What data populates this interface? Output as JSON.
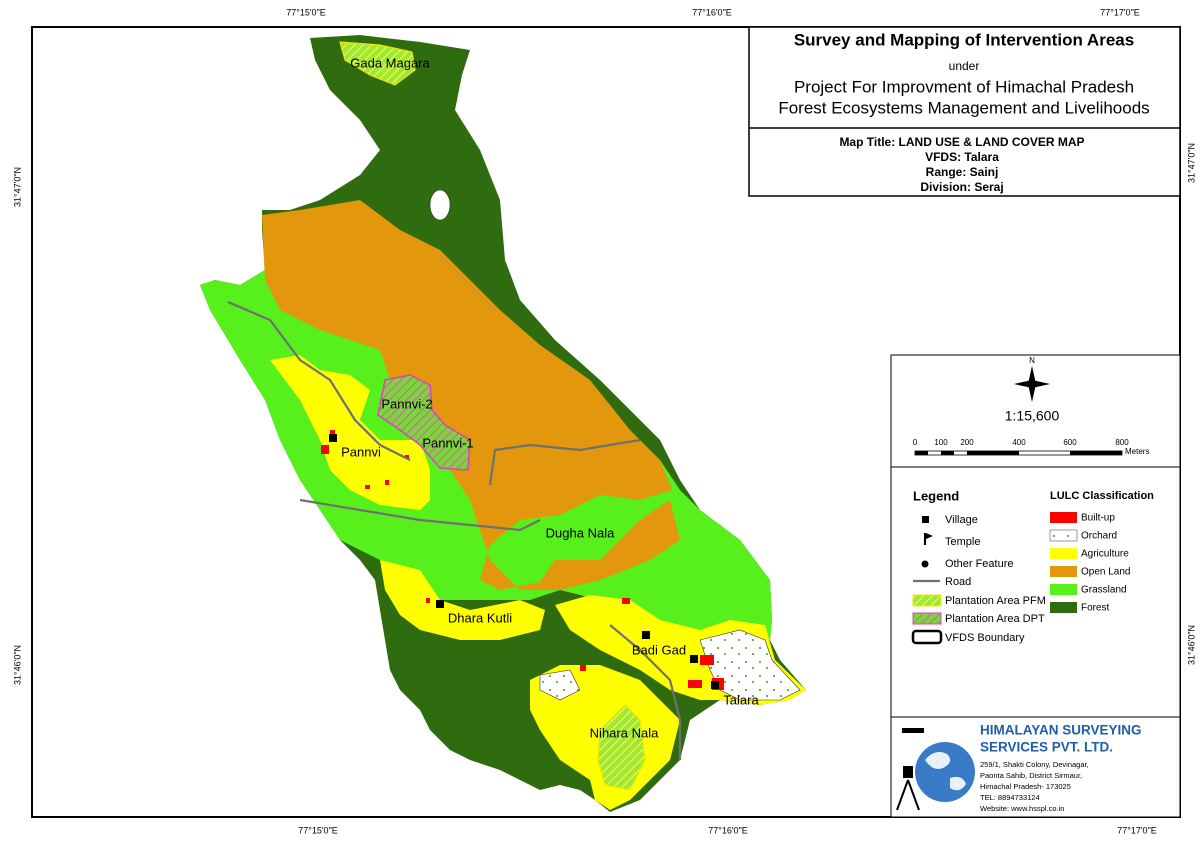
{
  "coordinates": {
    "top": [
      "77°15'0\"E",
      "77°16'0\"E",
      "77°17'0\"E"
    ],
    "bottom": [
      "77°15'0\"E",
      "77°16'0\"E",
      "77°17'0\"E"
    ],
    "left": [
      "31°47'0\"N",
      "31°46'0\"N"
    ],
    "right": [
      "31°47'0\"N",
      "31°46'0\"N"
    ]
  },
  "title_box": {
    "title": "Survey and Mapping of Intervention Areas",
    "under": "under",
    "project": [
      "Project For Improvment of Himachal Pradesh",
      "Forest Ecosystems Management and Livelihoods"
    ],
    "info": [
      "Map Title: LAND USE & LAND COVER MAP",
      "VFDS: Talara",
      "Range: Sainj",
      "Division: Seraj"
    ]
  },
  "scale_box": {
    "north": "N",
    "ratio": "1:15,600",
    "ticks": [
      "0",
      "100",
      "200",
      "400",
      "600",
      "800"
    ],
    "unit": "Meters"
  },
  "legend": {
    "title": "Legend",
    "items": [
      "Village",
      "Temple",
      "Other Feature",
      "Road",
      "Plantation Area PFM",
      "Plantation Area DPT",
      "VFDS Boundary"
    ],
    "lulc_title": "LULC Classification",
    "lulc": [
      "Built-up",
      "Orchard",
      "Agriculture",
      "Open Land",
      "Grassland",
      "Forest"
    ]
  },
  "places": [
    "Gada Magara",
    "Pannvi-2",
    "Pannvi-1",
    "Pannvi",
    "Dugha Nala",
    "Dhara Kutli",
    "Badi Gad",
    "Talara",
    "Nihara Nala"
  ],
  "company": {
    "name": [
      "HIMALAYAN SURVEYING",
      "SERVICES PVT. LTD."
    ],
    "address": [
      "259/1, Shakti Colony, Devinagar,",
      "Paonta Sahib, District Sirmaur,",
      "Himachal Pradesh- 173025",
      "TEL: 8894733124",
      "Website: www.hsspl.co.in"
    ]
  }
}
